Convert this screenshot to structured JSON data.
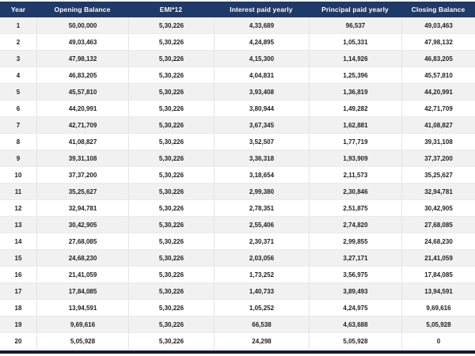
{
  "chart_data": {
    "type": "table",
    "columns": [
      "Year",
      "Opening Balance",
      "EMI*12",
      "Interest paid yearly",
      "Principal paid yearly",
      "Closing Balance"
    ],
    "rows": [
      [
        "1",
        "50,00,000",
        "5,30,226",
        "4,33,689",
        "96,537",
        "49,03,463"
      ],
      [
        "2",
        "49,03,463",
        "5,30,226",
        "4,24,895",
        "1,05,331",
        "47,98,132"
      ],
      [
        "3",
        "47,98,132",
        "5,30,226",
        "4,15,300",
        "1,14,926",
        "46,83,205"
      ],
      [
        "4",
        "46,83,205",
        "5,30,226",
        "4,04,831",
        "1,25,396",
        "45,57,810"
      ],
      [
        "5",
        "45,57,810",
        "5,30,226",
        "3,93,408",
        "1,36,819",
        "44,20,991"
      ],
      [
        "6",
        "44,20,991",
        "5,30,226",
        "3,80,944",
        "1,49,282",
        "42,71,709"
      ],
      [
        "7",
        "42,71,709",
        "5,30,226",
        "3,67,345",
        "1,62,881",
        "41,08,827"
      ],
      [
        "8",
        "41,08,827",
        "5,30,226",
        "3,52,507",
        "1,77,719",
        "39,31,108"
      ],
      [
        "9",
        "39,31,108",
        "5,30,226",
        "3,36,318",
        "1,93,909",
        "37,37,200"
      ],
      [
        "10",
        "37,37,200",
        "5,30,226",
        "3,18,654",
        "2,11,573",
        "35,25,627"
      ],
      [
        "11",
        "35,25,627",
        "5,30,226",
        "2,99,380",
        "2,30,846",
        "32,94,781"
      ],
      [
        "12",
        "32,94,781",
        "5,30,226",
        "2,78,351",
        "2,51,875",
        "30,42,905"
      ],
      [
        "13",
        "30,42,905",
        "5,30,226",
        "2,55,406",
        "2,74,820",
        "27,68,085"
      ],
      [
        "14",
        "27,68,085",
        "5,30,226",
        "2,30,371",
        "2,99,855",
        "24,68,230"
      ],
      [
        "15",
        "24,68,230",
        "5,30,226",
        "2,03,056",
        "3,27,171",
        "21,41,059"
      ],
      [
        "16",
        "21,41,059",
        "5,30,226",
        "1,73,252",
        "3,56,975",
        "17,84,085"
      ],
      [
        "17",
        "17,84,085",
        "5,30,226",
        "1,40,733",
        "3,89,493",
        "13,94,591"
      ],
      [
        "18",
        "13,94,591",
        "5,30,226",
        "1,05,252",
        "4,24,975",
        "9,69,616"
      ],
      [
        "19",
        "9,69,616",
        "5,30,226",
        "66,538",
        "4,63,688",
        "5,05,928"
      ],
      [
        "20",
        "5,05,928",
        "5,30,226",
        "24,298",
        "5,05,928",
        "0"
      ]
    ]
  },
  "colors": {
    "header_bg": "#1f3968",
    "header_text": "#ffffff",
    "row_stripe": "#f1f1f2",
    "row_text": "#1d1d1f",
    "grid_line": "#e4e4e6",
    "bottom_bar": "#121c30"
  }
}
